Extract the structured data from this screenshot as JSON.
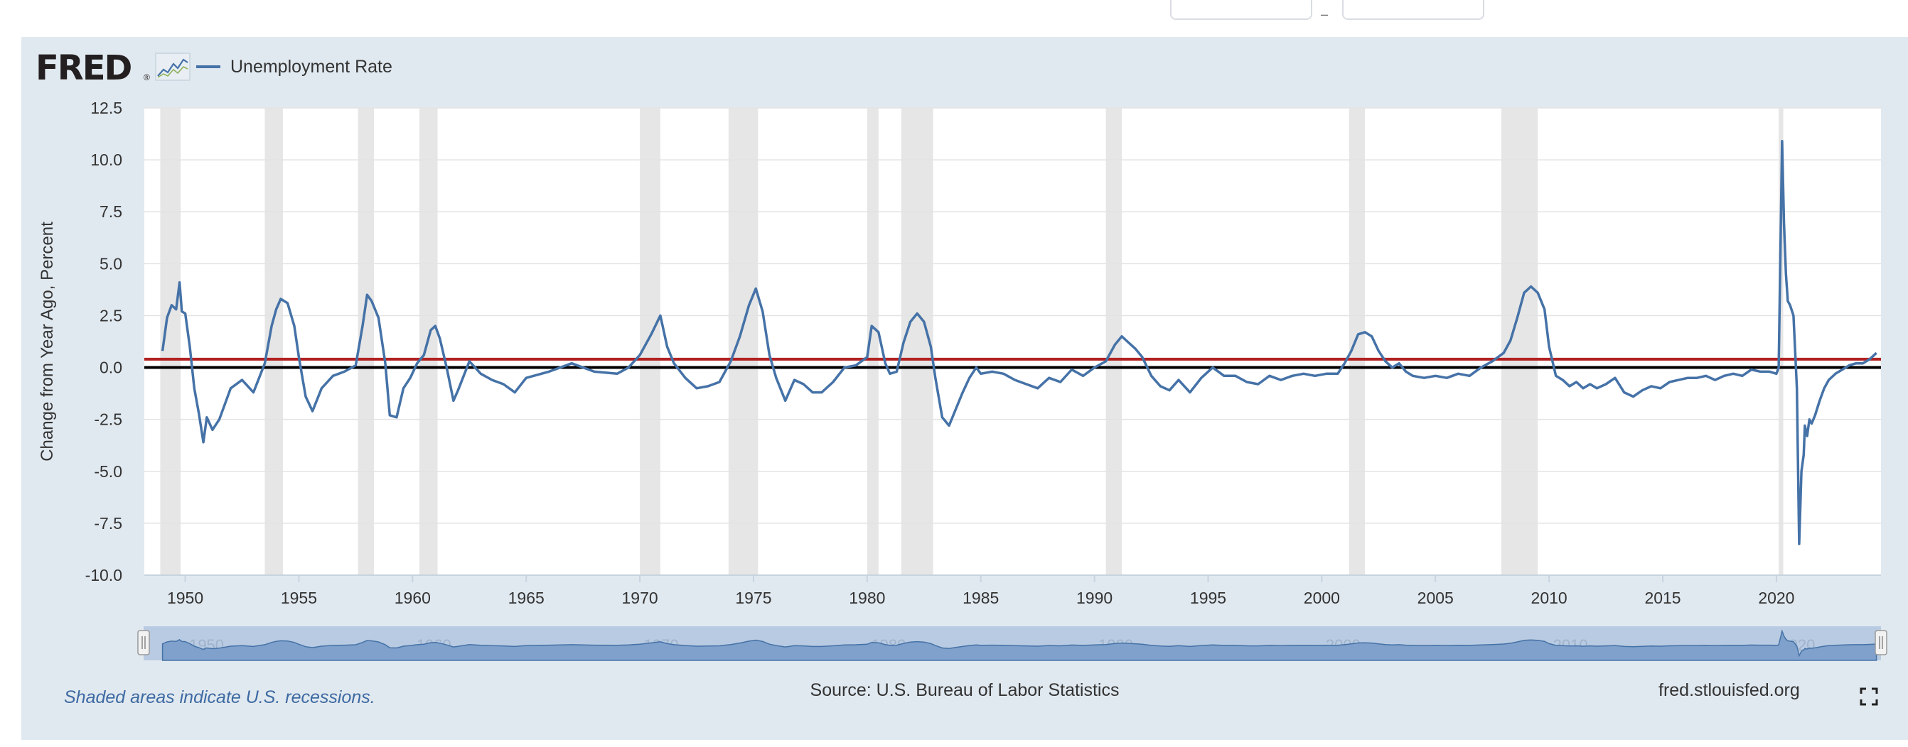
{
  "header": {
    "logo_text": "FRED",
    "legend_label": "Unemployment Rate"
  },
  "footer": {
    "note": "Shaded areas indicate U.S. recessions.",
    "source": "Source: U.S. Bureau of Labor Statistics",
    "site": "fred.stlouisfed.org"
  },
  "icons": [
    "fred-logo-icon",
    "sparkline-icon",
    "fullscreen-icon"
  ],
  "colors": {
    "background": "#e1e9f0",
    "series": "#4572a7",
    "recession": "#e6e6e6",
    "reference_red": "#b22222",
    "reference_black": "#000000"
  },
  "chart_data": {
    "type": "line",
    "title": "",
    "xlabel": "",
    "ylabel": "Change from Year Ago, Percent",
    "ylim": [
      -10,
      12.5
    ],
    "xlim": [
      1948.2,
      2024.6
    ],
    "yticks": [
      "12.5",
      "10.0",
      "7.5",
      "5.0",
      "2.5",
      "0.0",
      "-2.5",
      "-5.0",
      "-7.5",
      "-10.0"
    ],
    "xticks": [
      "1950",
      "1955",
      "1960",
      "1965",
      "1970",
      "1975",
      "1980",
      "1985",
      "1990",
      "1995",
      "2000",
      "2005",
      "2010",
      "2015",
      "2020"
    ],
    "navigator_labels": [
      "1950",
      "1960",
      "1970",
      "1980",
      "1990",
      "2000",
      "2010",
      "2020"
    ],
    "grid": true,
    "legend_position": "top-left",
    "reference_lines": [
      {
        "value": 0.4,
        "color": "#b22222"
      },
      {
        "value": 0.0,
        "color": "#000000"
      }
    ],
    "recessions": [
      [
        1948.9,
        1949.8
      ],
      [
        1953.5,
        1954.3
      ],
      [
        1957.6,
        1958.3
      ],
      [
        1960.3,
        1961.1
      ],
      [
        1970.0,
        1970.9
      ],
      [
        1973.9,
        1975.2
      ],
      [
        1980.0,
        1980.5
      ],
      [
        1981.5,
        1982.9
      ],
      [
        1990.5,
        1991.2
      ],
      [
        2001.2,
        2001.9
      ],
      [
        2007.9,
        2009.5
      ],
      [
        2020.1,
        2020.3
      ]
    ],
    "series": [
      {
        "name": "Unemployment Rate",
        "x": [
          1949.0,
          1949.2,
          1949.4,
          1949.6,
          1949.75,
          1949.85,
          1950.0,
          1950.2,
          1950.4,
          1950.6,
          1950.8,
          1950.95,
          1951.2,
          1951.5,
          1952.0,
          1952.5,
          1953.0,
          1953.5,
          1953.8,
          1954.0,
          1954.2,
          1954.5,
          1954.8,
          1955.0,
          1955.3,
          1955.6,
          1956.0,
          1956.5,
          1957.0,
          1957.5,
          1957.8,
          1958.0,
          1958.2,
          1958.5,
          1958.8,
          1959.0,
          1959.3,
          1959.6,
          1959.9,
          1960.2,
          1960.5,
          1960.8,
          1961.0,
          1961.2,
          1961.5,
          1961.8,
          1962.0,
          1962.5,
          1963.0,
          1963.5,
          1964.0,
          1964.5,
          1965.0,
          1966.0,
          1967.0,
          1968.0,
          1969.0,
          1969.5,
          1970.0,
          1970.5,
          1970.9,
          1971.2,
          1971.5,
          1972.0,
          1972.5,
          1973.0,
          1973.5,
          1974.0,
          1974.4,
          1974.8,
          1975.1,
          1975.4,
          1975.7,
          1976.0,
          1976.4,
          1976.8,
          1977.2,
          1977.6,
          1978.0,
          1978.5,
          1979.0,
          1979.5,
          1980.0,
          1980.2,
          1980.5,
          1980.8,
          1981.0,
          1981.3,
          1981.6,
          1981.9,
          1982.2,
          1982.5,
          1982.8,
          1983.0,
          1983.3,
          1983.6,
          1983.9,
          1984.2,
          1984.5,
          1984.8,
          1985.0,
          1985.5,
          1986.0,
          1986.5,
          1987.0,
          1987.5,
          1988.0,
          1988.5,
          1989.0,
          1989.5,
          1990.0,
          1990.5,
          1990.9,
          1991.2,
          1991.5,
          1991.8,
          1992.1,
          1992.5,
          1992.9,
          1993.3,
          1993.7,
          1994.2,
          1994.7,
          1995.2,
          1995.7,
          1996.2,
          1996.7,
          1997.2,
          1997.7,
          1998.2,
          1998.7,
          1999.2,
          1999.7,
          2000.2,
          2000.7,
          2001.0,
          2001.3,
          2001.6,
          2001.9,
          2002.2,
          2002.5,
          2002.8,
          2003.1,
          2003.4,
          2003.7,
          2004.0,
          2004.5,
          2005.0,
          2005.5,
          2006.0,
          2006.5,
          2007.0,
          2007.5,
          2008.0,
          2008.3,
          2008.6,
          2008.9,
          2009.2,
          2009.5,
          2009.8,
          2010.0,
          2010.3,
          2010.6,
          2010.9,
          2011.2,
          2011.5,
          2011.8,
          2012.1,
          2012.5,
          2012.9,
          2013.3,
          2013.7,
          2014.1,
          2014.5,
          2014.9,
          2015.3,
          2015.7,
          2016.1,
          2016.5,
          2016.9,
          2017.3,
          2017.7,
          2018.1,
          2018.5,
          2018.9,
          2019.3,
          2019.7,
          2020.0,
          2020.1,
          2020.25,
          2020.33,
          2020.42,
          2020.5,
          2020.6,
          2020.75,
          2020.9,
          2021.0,
          2021.1,
          2021.2,
          2021.25,
          2021.35,
          2021.45,
          2021.55,
          2021.7,
          2021.9,
          2022.1,
          2022.3,
          2022.6,
          2022.9,
          2023.2,
          2023.5,
          2023.8,
          2024.1,
          2024.4
        ],
        "y": [
          0.8,
          2.4,
          3.0,
          2.8,
          4.1,
          2.7,
          2.6,
          1.0,
          -1.0,
          -2.2,
          -3.6,
          -2.4,
          -3.0,
          -2.5,
          -1.0,
          -0.6,
          -1.2,
          0.2,
          2.0,
          2.8,
          3.3,
          3.1,
          2.0,
          0.5,
          -1.4,
          -2.1,
          -1.0,
          -0.4,
          -0.2,
          0.1,
          2.0,
          3.5,
          3.2,
          2.4,
          0.2,
          -2.3,
          -2.4,
          -1.0,
          -0.5,
          0.2,
          0.6,
          1.8,
          2.0,
          1.4,
          0.0,
          -1.6,
          -1.1,
          0.3,
          -0.3,
          -0.6,
          -0.8,
          -1.2,
          -0.5,
          -0.2,
          0.2,
          -0.2,
          -0.3,
          0.0,
          0.6,
          1.6,
          2.5,
          1.0,
          0.2,
          -0.5,
          -1.0,
          -0.9,
          -0.7,
          0.3,
          1.5,
          3.0,
          3.8,
          2.7,
          0.6,
          -0.5,
          -1.6,
          -0.6,
          -0.8,
          -1.2,
          -1.2,
          -0.7,
          0.0,
          0.1,
          0.5,
          2.0,
          1.7,
          0.2,
          -0.3,
          -0.2,
          1.2,
          2.2,
          2.6,
          2.2,
          1.0,
          -0.5,
          -2.4,
          -2.8,
          -2.0,
          -1.2,
          -0.5,
          0.0,
          -0.3,
          -0.2,
          -0.3,
          -0.6,
          -0.8,
          -1.0,
          -0.5,
          -0.7,
          -0.1,
          -0.4,
          0.0,
          0.3,
          1.1,
          1.5,
          1.2,
          0.9,
          0.5,
          -0.4,
          -0.9,
          -1.1,
          -0.6,
          -1.2,
          -0.5,
          0.0,
          -0.4,
          -0.4,
          -0.7,
          -0.8,
          -0.4,
          -0.6,
          -0.4,
          -0.3,
          -0.4,
          -0.3,
          -0.3,
          0.2,
          0.8,
          1.6,
          1.7,
          1.5,
          0.8,
          0.3,
          0.0,
          0.2,
          -0.2,
          -0.4,
          -0.5,
          -0.4,
          -0.5,
          -0.3,
          -0.4,
          0.0,
          0.3,
          0.7,
          1.3,
          2.4,
          3.6,
          3.9,
          3.6,
          2.8,
          1.0,
          -0.4,
          -0.6,
          -0.9,
          -0.7,
          -1.0,
          -0.8,
          -1.0,
          -0.8,
          -0.5,
          -1.2,
          -1.4,
          -1.1,
          -0.9,
          -1.0,
          -0.7,
          -0.6,
          -0.5,
          -0.5,
          -0.4,
          -0.6,
          -0.4,
          -0.3,
          -0.4,
          -0.1,
          -0.2,
          -0.2,
          -0.3,
          0.0,
          10.9,
          7.0,
          4.5,
          3.2,
          3.0,
          2.5,
          -1.0,
          -8.5,
          -5.0,
          -4.2,
          -2.8,
          -3.3,
          -2.5,
          -2.7,
          -2.3,
          -1.6,
          -1.0,
          -0.6,
          -0.3,
          -0.1,
          0.1,
          0.2,
          0.2,
          0.4,
          0.7
        ]
      }
    ]
  }
}
